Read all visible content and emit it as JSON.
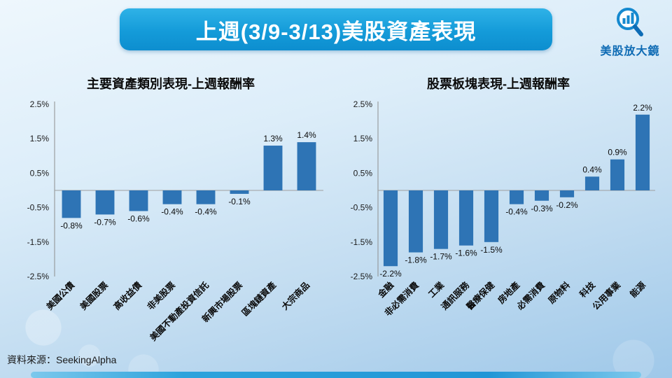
{
  "page": {
    "title": "上週(3/9-3/13)美股資產表現",
    "brand": "美股放大鏡",
    "source": "資料來源：SeekingAlpha"
  },
  "chart_data": [
    {
      "type": "bar",
      "title": "主要資產類別表現-上週報酬率",
      "categories": [
        "美國公債",
        "美國股票",
        "高收益債",
        "非美股票",
        "美國不動產投資信託",
        "新興市場股票",
        "區塊鏈資產",
        "大宗商品"
      ],
      "values": [
        -0.8,
        -0.7,
        -0.6,
        -0.4,
        -0.4,
        -0.1,
        1.3,
        1.4
      ],
      "labels": [
        "-0.8%",
        "-0.7%",
        "-0.6%",
        "-0.4%",
        "-0.4%",
        "-0.1%",
        "1.3%",
        "1.4%"
      ],
      "ylim": [
        -2.5,
        2.5
      ],
      "yticks": [
        "2.5%",
        "1.5%",
        "0.5%",
        "-0.5%",
        "-1.5%",
        "-2.5%"
      ],
      "bar_color": "#2E74B5",
      "grid": false,
      "legend": "none"
    },
    {
      "type": "bar",
      "title": "股票板塊表現-上週報酬率",
      "categories": [
        "金融",
        "非必需消費",
        "工業",
        "通訊服務",
        "醫療保健",
        "房地產",
        "必需消費",
        "原物料",
        "科技",
        "公用事業",
        "能源"
      ],
      "values": [
        -2.2,
        -1.8,
        -1.7,
        -1.6,
        -1.5,
        -0.4,
        -0.3,
        -0.2,
        0.4,
        0.9,
        2.2
      ],
      "labels": [
        "-2.2%",
        "-1.8%",
        "-1.7%",
        "-1.6%",
        "-1.5%",
        "-0.4%",
        "-0.3%",
        "-0.2%",
        "0.4%",
        "0.9%",
        "2.2%"
      ],
      "ylim": [
        -2.5,
        2.5
      ],
      "yticks": [
        "2.5%",
        "1.5%",
        "0.5%",
        "-0.5%",
        "-1.5%",
        "-2.5%"
      ],
      "bar_color": "#2E74B5",
      "grid": false,
      "legend": "none"
    }
  ]
}
